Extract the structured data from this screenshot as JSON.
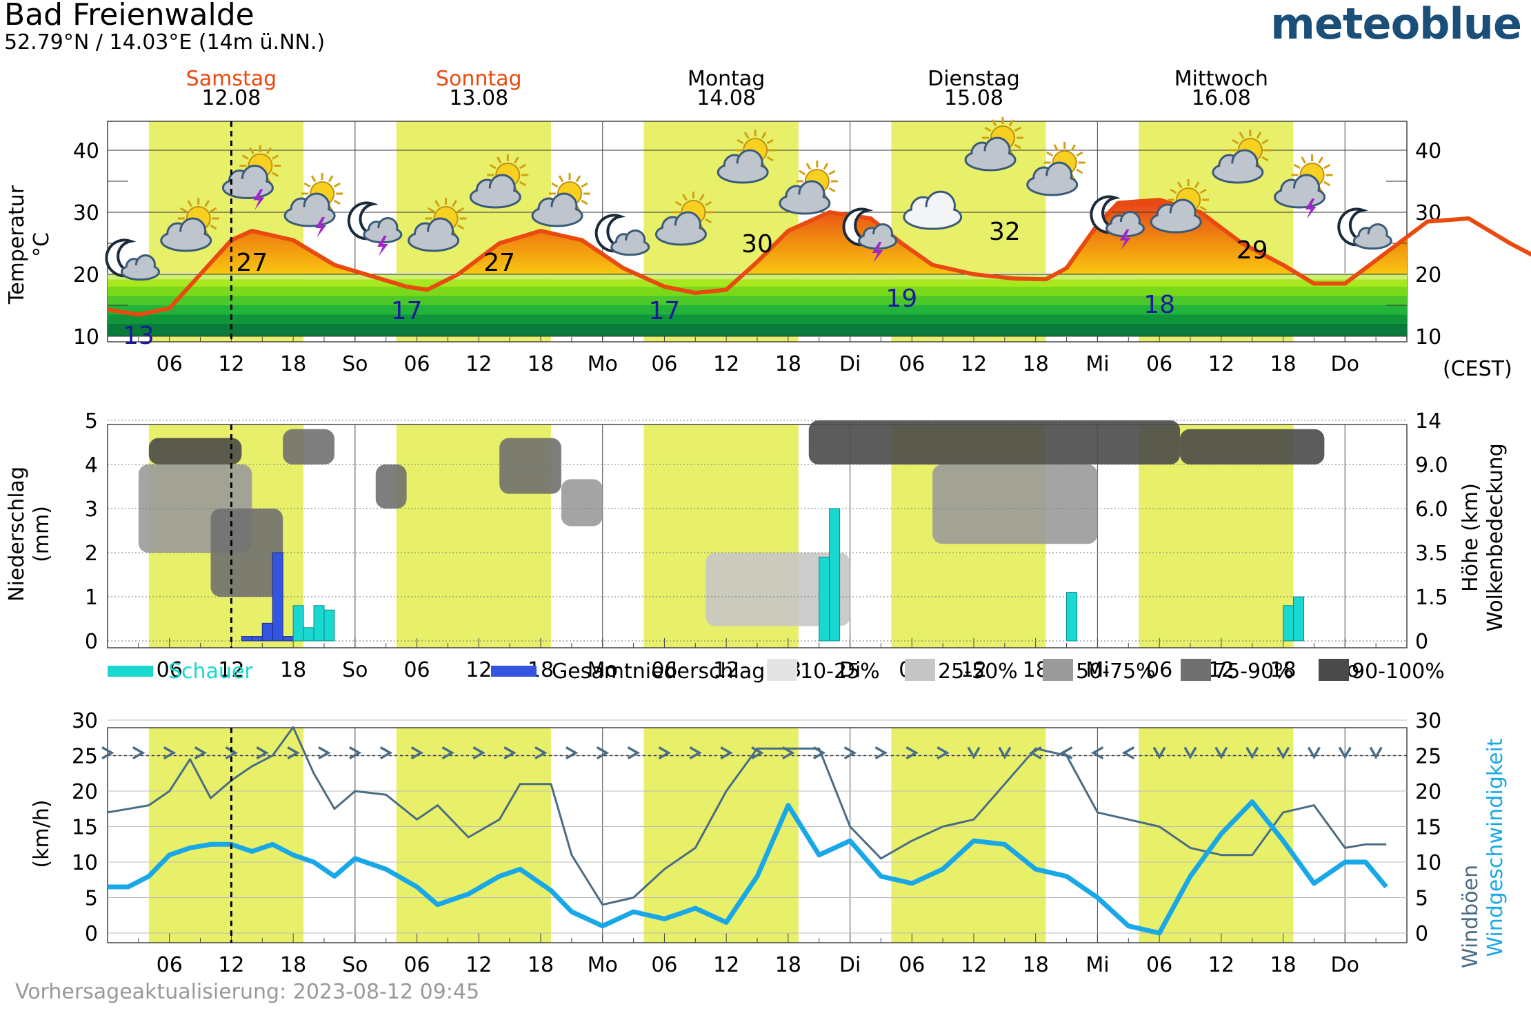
{
  "header": {
    "location": "Bad Freienwalde",
    "coords": "52.79°N / 14.03°E (14m ü.NN.)",
    "brand": "meteoblue"
  },
  "footer": "Vorhersageaktualisierung: 2023-08-12 09:45",
  "days": [
    {
      "name": "Samstag",
      "date": "12.08",
      "weekend": true
    },
    {
      "name": "Sonntag",
      "date": "13.08",
      "weekend": true
    },
    {
      "name": "Montag",
      "date": "14.08",
      "weekend": false
    },
    {
      "name": "Dienstag",
      "date": "15.08",
      "weekend": false
    },
    {
      "name": "Mittwoch",
      "date": "16.08",
      "weekend": false
    }
  ],
  "x_tick_labels": [
    "06",
    "12",
    "18",
    "So",
    "06",
    "12",
    "18",
    "Mo",
    "06",
    "12",
    "18",
    "Di",
    "06",
    "12",
    "18",
    "Mi",
    "06",
    "12",
    "18",
    "Do"
  ],
  "timezone": "(CEST)",
  "colors": {
    "daylight": "#e8f06a",
    "temperature_line": "#e84a10",
    "shower": "#18d8d0",
    "total_precip": "#3355e0",
    "gusts": "#4a6c84",
    "wind_speed": "#18a8e8",
    "minmax_label": "#1a1aa0",
    "weekend_label": "#e84a10"
  },
  "chart_data": [
    {
      "type": "line",
      "ylabel": "Temperatur °C",
      "ylim": [
        10,
        45
      ],
      "yticks": [
        10,
        20,
        30,
        40
      ],
      "x_unit": "hours from Sat 12.08 00:00",
      "now_hour": 12,
      "series": [
        {
          "x": [
            0,
            3,
            6,
            9,
            12,
            14,
            18,
            22,
            26,
            29,
            31,
            34,
            38,
            42,
            46,
            50,
            54,
            57,
            60,
            63,
            66,
            70,
            74,
            77,
            80,
            84,
            88,
            91,
            93,
            96,
            98,
            102,
            106,
            110,
            114,
            117,
            120,
            124,
            128,
            132,
            136,
            140,
            144
          ],
          "values": [
            14.3,
            13.5,
            14.5,
            20,
            25.5,
            27,
            25.5,
            21.5,
            19.5,
            18,
            17.5,
            20,
            25,
            27,
            25.5,
            21,
            18,
            17,
            17.5,
            22,
            27,
            30,
            29,
            25,
            21.5,
            20,
            19.3,
            19.2,
            21,
            28,
            31.5,
            32,
            30,
            25,
            21.5,
            18.5,
            18.5,
            23.5,
            28.5,
            29,
            25,
            21.5,
            20
          ]
        }
      ],
      "labels": [
        {
          "text": "13",
          "x": 3,
          "y": 13,
          "kind": "min"
        },
        {
          "text": "27",
          "x": 14,
          "y": 27,
          "kind": "max"
        },
        {
          "text": "17",
          "x": 29,
          "y": 17,
          "kind": "min"
        },
        {
          "text": "27",
          "x": 38,
          "y": 27,
          "kind": "max"
        },
        {
          "text": "17",
          "x": 54,
          "y": 17,
          "kind": "min"
        },
        {
          "text": "30",
          "x": 63,
          "y": 30,
          "kind": "max"
        },
        {
          "text": "19",
          "x": 77,
          "y": 19,
          "kind": "min"
        },
        {
          "text": "32",
          "x": 87,
          "y": 32,
          "kind": "max"
        },
        {
          "text": "18",
          "x": 102,
          "y": 18,
          "kind": "min"
        },
        {
          "text": "29",
          "x": 111,
          "y": 29,
          "kind": "max"
        }
      ],
      "weather_icons": [
        {
          "x": 0.5,
          "y": 22,
          "icon": "moon-cloud-icon"
        },
        {
          "x": 6,
          "y": 27,
          "icon": "sun-cloud-icon"
        },
        {
          "x": 12,
          "y": 35.5,
          "icon": "sun-cloud-thunder-icon"
        },
        {
          "x": 18,
          "y": 31,
          "icon": "sun-cloud-thunder-icon"
        },
        {
          "x": 24,
          "y": 28,
          "icon": "moon-cloud-thunder-icon"
        },
        {
          "x": 30,
          "y": 27,
          "icon": "sun-cloud-icon"
        },
        {
          "x": 36,
          "y": 34,
          "icon": "sun-cloud-icon"
        },
        {
          "x": 42,
          "y": 31,
          "icon": "sun-cloud-icon"
        },
        {
          "x": 48,
          "y": 26,
          "icon": "moon-cloud-icon"
        },
        {
          "x": 54,
          "y": 28,
          "icon": "sun-cloud-icon"
        },
        {
          "x": 60,
          "y": 38,
          "icon": "sun-cloud-icon"
        },
        {
          "x": 66,
          "y": 33,
          "icon": "sun-cloud-icon"
        },
        {
          "x": 72,
          "y": 27,
          "icon": "moon-cloud-thunder-icon"
        },
        {
          "x": 78,
          "y": 30,
          "icon": "cloud-icon"
        },
        {
          "x": 84,
          "y": 40,
          "icon": "sun-cloud-icon"
        },
        {
          "x": 90,
          "y": 36,
          "icon": "sun-cloud-icon"
        },
        {
          "x": 96,
          "y": 29,
          "icon": "moon-cloud-thunder-icon"
        },
        {
          "x": 102,
          "y": 30,
          "icon": "sun-cloud-icon"
        },
        {
          "x": 108,
          "y": 38,
          "icon": "sun-cloud-icon"
        },
        {
          "x": 114,
          "y": 34,
          "icon": "sun-cloud-thunder-icon"
        },
        {
          "x": 120,
          "y": 27,
          "icon": "moon-cloud-icon"
        }
      ]
    },
    {
      "type": "bar",
      "ylabel": "Niederschlag (mm)",
      "ylim": [
        0,
        5
      ],
      "yticks": [
        0,
        1,
        2,
        3,
        4,
        5
      ],
      "right_label": "Höhe (km)  Wolkenbedeckung",
      "right_ticks": [
        "0",
        "1.5",
        "3.5",
        "6.0",
        "9.0",
        "14"
      ],
      "total_precip": {
        "x": [
          13,
          14,
          15,
          16,
          17
        ],
        "values": [
          0.1,
          0.1,
          0.4,
          2.0,
          0.1
        ]
      },
      "shower": {
        "x": [
          18,
          19,
          20,
          21,
          69,
          70,
          93,
          114,
          115
        ],
        "values": [
          0.8,
          0.3,
          0.8,
          0.7,
          1.9,
          3.0,
          1.1,
          0.8,
          1.0
        ]
      },
      "cloud_layers": [
        {
          "x0": 4,
          "x1": 13,
          "h0": 9.0,
          "h1": 12.0,
          "cover": "90-100%"
        },
        {
          "x0": 3,
          "x1": 14,
          "h0": 3.5,
          "h1": 9.0,
          "cover": "50-75%"
        },
        {
          "x0": 10,
          "x1": 17,
          "h0": 1.5,
          "h1": 6.0,
          "cover": "75-90%"
        },
        {
          "x0": 17,
          "x1": 22,
          "h0": 9.0,
          "h1": 13.0,
          "cover": "75-90%"
        },
        {
          "x0": 26,
          "x1": 29,
          "h0": 6.0,
          "h1": 9.0,
          "cover": "75-90%"
        },
        {
          "x0": 38,
          "x1": 44,
          "h0": 7.0,
          "h1": 12.0,
          "cover": "75-90%"
        },
        {
          "x0": 44,
          "x1": 48,
          "h0": 5.0,
          "h1": 8.0,
          "cover": "50-75%"
        },
        {
          "x0": 68,
          "x1": 104,
          "h0": 9.0,
          "h1": 14.0,
          "cover": "90-100%"
        },
        {
          "x0": 80,
          "x1": 96,
          "h0": 4.0,
          "h1": 9.0,
          "cover": "50-75%"
        },
        {
          "x0": 104,
          "x1": 118,
          "h0": 9.0,
          "h1": 13.0,
          "cover": "90-100%"
        },
        {
          "x0": 58,
          "x1": 72,
          "h0": 0.5,
          "h1": 3.5,
          "cover": "25-50%"
        }
      ],
      "legend": [
        "Schauer",
        "Gesamtniederschlag",
        "10-25%",
        "25-50%",
        "50-75%",
        "75-90%",
        "90-100%"
      ]
    },
    {
      "type": "line",
      "ylabel": "(km/h)",
      "right_label_gusts": "Windböen",
      "right_label_speed": "Windgeschwindigkeit",
      "ylim": [
        0,
        30
      ],
      "yticks": [
        0,
        5,
        10,
        15,
        20,
        25,
        30
      ],
      "series": [
        {
          "name": "Windböen",
          "x": [
            0,
            2,
            4,
            6,
            8,
            10,
            12,
            14,
            16,
            18,
            20,
            22,
            24,
            27,
            30,
            32,
            35,
            38,
            40,
            43,
            45,
            48,
            51,
            54,
            57,
            60,
            63,
            66,
            69,
            72,
            75,
            78,
            81,
            84,
            87,
            90,
            93,
            96,
            99,
            102,
            105,
            108,
            111,
            114,
            117,
            120,
            122,
            124
          ],
          "values": [
            17,
            17.5,
            18,
            20,
            24.5,
            19,
            21.5,
            23.5,
            25,
            29,
            22.5,
            17.5,
            20,
            19.5,
            16,
            18,
            13.5,
            16,
            21,
            21,
            11,
            4,
            5,
            9,
            12,
            20,
            26,
            26,
            26,
            15,
            10.5,
            13,
            15,
            16,
            21,
            26,
            25,
            17,
            16,
            15,
            12,
            11,
            11,
            17,
            18,
            12,
            12.5,
            12.5
          ]
        },
        {
          "name": "Windgeschwindigkeit",
          "x": [
            0,
            2,
            4,
            6,
            8,
            10,
            12,
            14,
            16,
            18,
            20,
            22,
            24,
            27,
            30,
            32,
            35,
            38,
            40,
            43,
            45,
            48,
            51,
            54,
            57,
            60,
            63,
            66,
            69,
            72,
            75,
            78,
            81,
            84,
            87,
            90,
            93,
            96,
            99,
            102,
            105,
            108,
            111,
            114,
            117,
            120,
            122,
            124
          ],
          "values": [
            6.5,
            6.5,
            8,
            11,
            12,
            12.5,
            12.5,
            11.5,
            12.5,
            11,
            10,
            8,
            10.5,
            9,
            6.5,
            4,
            5.5,
            8,
            9,
            6,
            3,
            1,
            3,
            2,
            3.5,
            1.5,
            8,
            18,
            11,
            13,
            8,
            7,
            9,
            13,
            12.5,
            9,
            8,
            5,
            1,
            0,
            8,
            14,
            18.5,
            13,
            7,
            10,
            10,
            6.5
          ]
        }
      ],
      "wind_direction_row": ">>>>>>>>>>>>>>>>>>>>>>>>>>>>>>>>>>>>>>>>>>>>>>>>>>>>>>>>>>>>vvvv<<<<<<<<vvvvvvvvvvvvvvvvvv"
    }
  ]
}
